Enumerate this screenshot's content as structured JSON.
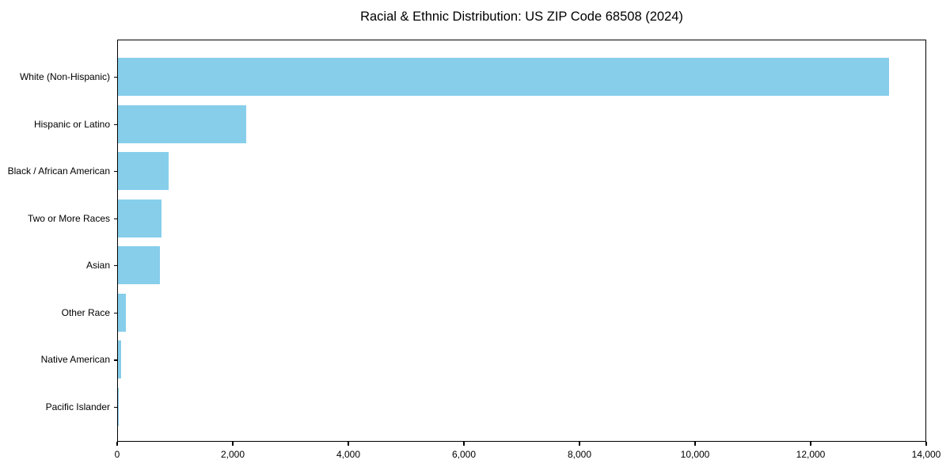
{
  "chart_data": {
    "type": "bar",
    "orientation": "horizontal",
    "title": "Racial & Ethnic Distribution: US ZIP Code 68508 (2024)",
    "categories": [
      "White (Non-Hispanic)",
      "Hispanic or Latino",
      "Black / African American",
      "Two or More Races",
      "Asian",
      "Other Race",
      "Native American",
      "Pacific Islander"
    ],
    "values": [
      13340,
      2220,
      875,
      760,
      730,
      140,
      60,
      10
    ],
    "xlabel": "",
    "ylabel": "",
    "xlim": [
      0,
      14000
    ],
    "xticks": [
      0,
      2000,
      4000,
      6000,
      8000,
      10000,
      12000,
      14000
    ],
    "xtick_labels": [
      "0",
      "2,000",
      "4,000",
      "6,000",
      "8,000",
      "10,000",
      "12,000",
      "14,000"
    ],
    "bar_color": "#87CEEB",
    "spine_color": "#000000",
    "background_color": "#ffffff",
    "grid": false,
    "legend": "none"
  }
}
